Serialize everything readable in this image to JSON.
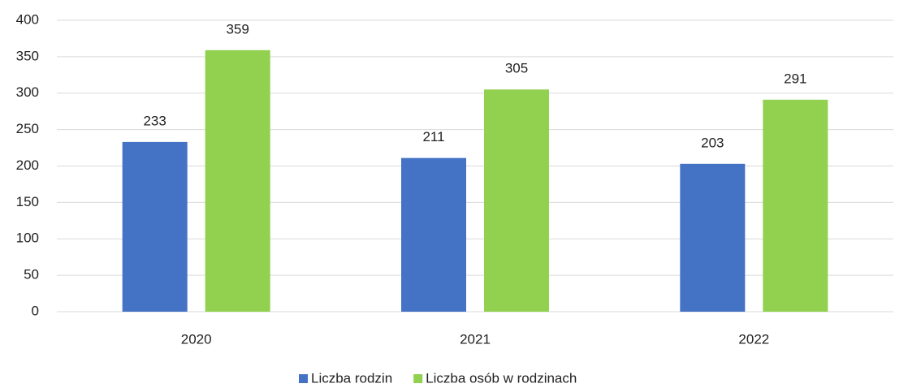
{
  "chart_data": {
    "type": "bar",
    "categories": [
      "2020",
      "2021",
      "2022"
    ],
    "series": [
      {
        "name": "Liczba rodzin",
        "color": "#4472c4",
        "values": [
          233,
          211,
          203
        ]
      },
      {
        "name": "Liczba osób w rodzinach",
        "color": "#92d050",
        "values": [
          359,
          305,
          291
        ]
      }
    ],
    "ylim": [
      0,
      400
    ],
    "yticks": [
      0,
      50,
      100,
      150,
      200,
      250,
      300,
      350,
      400
    ],
    "grid": true,
    "legend": "bottom"
  }
}
